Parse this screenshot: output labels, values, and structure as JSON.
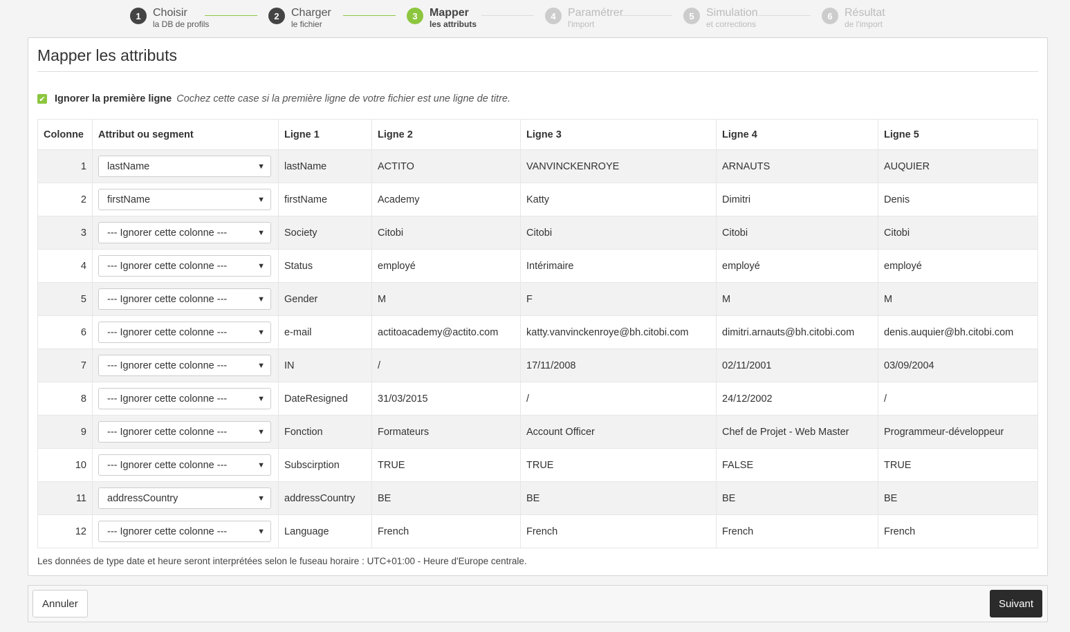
{
  "steps": [
    {
      "num": "1",
      "title": "Choisir",
      "sub": "la DB de profils",
      "state": "done"
    },
    {
      "num": "2",
      "title": "Charger",
      "sub": "le fichier",
      "state": "done"
    },
    {
      "num": "3",
      "title": "Mapper",
      "sub": "les attributs",
      "state": "active"
    },
    {
      "num": "4",
      "title": "Paramétrer",
      "sub": "l'import",
      "state": "future"
    },
    {
      "num": "5",
      "title": "Simulation",
      "sub": "et corrections",
      "state": "future"
    },
    {
      "num": "6",
      "title": "Résultat",
      "sub": "de l'import",
      "state": "future"
    }
  ],
  "panel": {
    "title": "Mapper les attributs",
    "ignore_label": "Ignorer la première ligne",
    "ignore_checked": true,
    "ignore_help": "Cochez cette case si la première ligne de votre fichier est une ligne de titre.",
    "note": "Les données de type date et heure seront interprétées selon le fuseau horaire : UTC+01:00 - Heure d'Europe centrale."
  },
  "table": {
    "headers": [
      "Colonne",
      "Attribut ou segment",
      "Ligne 1",
      "Ligne 2",
      "Ligne 3",
      "Ligne 4",
      "Ligne 5"
    ],
    "rows": [
      {
        "col": "1",
        "attr": "lastName",
        "cells": [
          "lastName",
          "ACTITO",
          "VANVINCKENROYE",
          "ARNAUTS",
          "AUQUIER"
        ]
      },
      {
        "col": "2",
        "attr": "firstName",
        "cells": [
          "firstName",
          "Academy",
          "Katty",
          "Dimitri",
          "Denis"
        ]
      },
      {
        "col": "3",
        "attr": "--- Ignorer cette colonne ---",
        "cells": [
          "Society",
          "Citobi",
          "Citobi",
          "Citobi",
          "Citobi"
        ]
      },
      {
        "col": "4",
        "attr": "--- Ignorer cette colonne ---",
        "cells": [
          "Status",
          "employé",
          "Intérimaire",
          "employé",
          "employé"
        ]
      },
      {
        "col": "5",
        "attr": "--- Ignorer cette colonne ---",
        "cells": [
          "Gender",
          "M",
          "F",
          "M",
          "M"
        ]
      },
      {
        "col": "6",
        "attr": "--- Ignorer cette colonne ---",
        "cells": [
          "e-mail",
          "actitoacademy@actito.com",
          "katty.vanvinckenroye@bh.citobi.com",
          "dimitri.arnauts@bh.citobi.com",
          "denis.auquier@bh.citobi.com"
        ]
      },
      {
        "col": "7",
        "attr": "--- Ignorer cette colonne ---",
        "cells": [
          "IN",
          "/",
          "17/11/2008",
          "02/11/2001",
          "03/09/2004"
        ]
      },
      {
        "col": "8",
        "attr": "--- Ignorer cette colonne ---",
        "cells": [
          "DateResigned",
          "31/03/2015",
          "/",
          "24/12/2002",
          "/"
        ]
      },
      {
        "col": "9",
        "attr": "--- Ignorer cette colonne ---",
        "cells": [
          "Fonction",
          "Formateurs",
          "Account Officer",
          "Chef de Projet - Web Master",
          "Programmeur-développeur"
        ]
      },
      {
        "col": "10",
        "attr": "--- Ignorer cette colonne ---",
        "cells": [
          "Subscirption",
          "TRUE",
          "TRUE",
          "FALSE",
          "TRUE"
        ]
      },
      {
        "col": "11",
        "attr": "addressCountry",
        "cells": [
          "addressCountry",
          "BE",
          "BE",
          "BE",
          "BE"
        ]
      },
      {
        "col": "12",
        "attr": "--- Ignorer cette colonne ---",
        "cells": [
          "Language",
          "French",
          "French",
          "French",
          "French"
        ]
      }
    ]
  },
  "footer": {
    "cancel": "Annuler",
    "next": "Suivant"
  },
  "colors": {
    "accent": "#8cc63f",
    "primary_button": "#2b2b2b"
  }
}
